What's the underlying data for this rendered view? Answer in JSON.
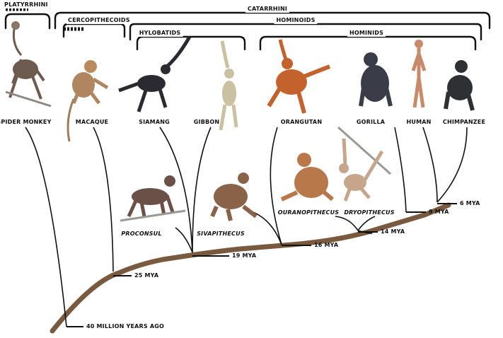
{
  "groups": {
    "platyrrhini": "PLATYRRHINI",
    "catarrhini": "CATARRHINI",
    "cercopithecoids": "CERCOPITHECOIDS",
    "hominoids": "HOMINOIDS",
    "hylobatids": "HYLOBATIDS",
    "hominids": "HOMINIDS"
  },
  "species": {
    "spider_monkey": "SPIDER MONKEY",
    "macaque": "MACAQUE",
    "siamang": "SIAMANG",
    "gibbon": "GIBBON",
    "orangutan": "ORANGUTAN",
    "gorilla": "GORILLA",
    "human": "HUMAN",
    "chimpanzee": "CHIMPANZEE"
  },
  "fossils": {
    "proconsul": "PROCONSUL",
    "sivapithecus": "SIVAPITHECUS",
    "ouranopithecus": "OURANOPITHECUS",
    "dryopithecus": "DRYOPITHECUS"
  },
  "timeline": {
    "mya_40": "40 MILLION YEARS AGO",
    "mya_25": "25 MYA",
    "mya_19": "19 MYA",
    "mya_16": "16 MYA",
    "mya_14": "14 MYA",
    "mya_9": "9 MYA",
    "mya_6": "6 MYA"
  },
  "colors": {
    "trunk": "#7a5a3e",
    "lines": "#111111",
    "fur_brown": "#6e5b4f",
    "fur_tan": "#b98b5c",
    "fur_black": "#2a2a30",
    "fur_orange": "#c4622d",
    "fur_pale": "#c9c1a0"
  }
}
